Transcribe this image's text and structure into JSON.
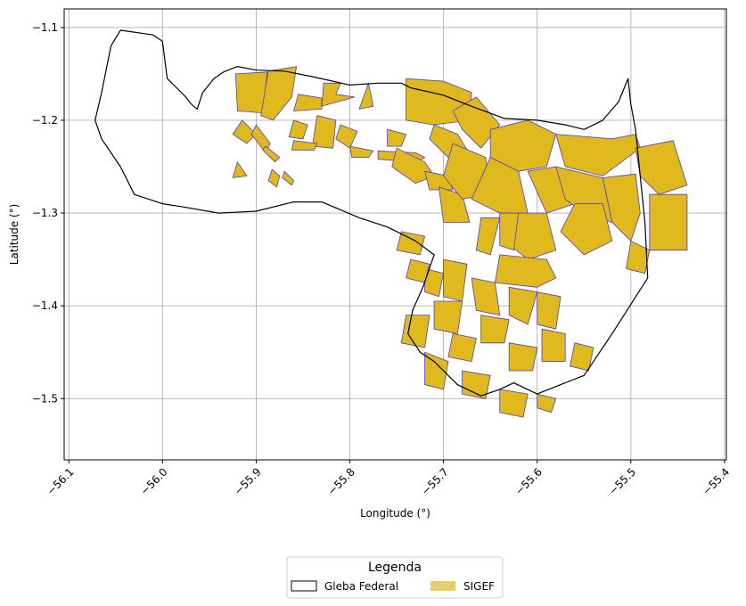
{
  "chart_data": {
    "type": "map",
    "xlabel": "Longitude (°)",
    "ylabel": "Latitude (°)",
    "xlim": [
      -56.105,
      -55.398
    ],
    "ylim": [
      -1.566,
      -1.08
    ],
    "x_ticks": [
      -56.1,
      -56.0,
      -55.9,
      -55.8,
      -55.7,
      -55.6,
      -55.5,
      -55.4
    ],
    "x_tick_labels": [
      "−56.1",
      "−56.0",
      "−55.9",
      "−55.8",
      "−55.7",
      "−55.6",
      "−55.5",
      "−55.4"
    ],
    "y_ticks": [
      -1.1,
      -1.2,
      -1.3,
      -1.4,
      -1.5
    ],
    "y_tick_labels": [
      "−1.1",
      "−1.2",
      "−1.3",
      "−1.4",
      "−1.5"
    ],
    "grid": true,
    "legend": {
      "title": "Legenda",
      "placement": "bottom-center, below axes",
      "entries": [
        {
          "label": "Gleba Federal",
          "style": "outline",
          "color": "#000000"
        },
        {
          "label": "SIGEF",
          "style": "fill",
          "color": "#e6cf6a"
        }
      ]
    },
    "colors": {
      "sigef_fill": "#e0b91e",
      "sigef_edge": "#4f3fb5",
      "gleba_edge": "#000000",
      "grid": "#b0b0b0"
    },
    "gleba_federal": [
      [
        -56.045,
        -1.103
      ],
      [
        -56.01,
        -1.108
      ],
      [
        -56.0,
        -1.115
      ],
      [
        -55.995,
        -1.155
      ],
      [
        -55.985,
        -1.165
      ],
      [
        -55.975,
        -1.175
      ],
      [
        -55.97,
        -1.182
      ],
      [
        -55.963,
        -1.188
      ],
      [
        -55.957,
        -1.17
      ],
      [
        -55.945,
        -1.155
      ],
      [
        -55.935,
        -1.148
      ],
      [
        -55.92,
        -1.142
      ],
      [
        -55.9,
        -1.146
      ],
      [
        -55.87,
        -1.147
      ],
      [
        -55.84,
        -1.153
      ],
      [
        -55.8,
        -1.162
      ],
      [
        -55.77,
        -1.16
      ],
      [
        -55.745,
        -1.16
      ],
      [
        -55.735,
        -1.165
      ],
      [
        -55.7,
        -1.173
      ],
      [
        -55.67,
        -1.185
      ],
      [
        -55.635,
        -1.198
      ],
      [
        -55.6,
        -1.2
      ],
      [
        -55.57,
        -1.205
      ],
      [
        -55.55,
        -1.21
      ],
      [
        -55.53,
        -1.2
      ],
      [
        -55.513,
        -1.18
      ],
      [
        -55.503,
        -1.155
      ],
      [
        -55.5,
        -1.183
      ],
      [
        -55.495,
        -1.21
      ],
      [
        -55.49,
        -1.26
      ],
      [
        -55.485,
        -1.31
      ],
      [
        -55.482,
        -1.37
      ],
      [
        -55.52,
        -1.43
      ],
      [
        -55.55,
        -1.475
      ],
      [
        -55.57,
        -1.483
      ],
      [
        -55.6,
        -1.495
      ],
      [
        -55.625,
        -1.483
      ],
      [
        -55.64,
        -1.49
      ],
      [
        -55.66,
        -1.497
      ],
      [
        -55.685,
        -1.485
      ],
      [
        -55.71,
        -1.46
      ],
      [
        -55.725,
        -1.45
      ],
      [
        -55.738,
        -1.43
      ],
      [
        -55.733,
        -1.405
      ],
      [
        -55.722,
        -1.38
      ],
      [
        -55.71,
        -1.345
      ],
      [
        -55.73,
        -1.33
      ],
      [
        -55.76,
        -1.315
      ],
      [
        -55.79,
        -1.305
      ],
      [
        -55.83,
        -1.288
      ],
      [
        -55.86,
        -1.288
      ],
      [
        -55.9,
        -1.298
      ],
      [
        -55.94,
        -1.3
      ],
      [
        -55.98,
        -1.293
      ],
      [
        -56.0,
        -1.29
      ],
      [
        -56.03,
        -1.28
      ],
      [
        -56.045,
        -1.25
      ],
      [
        -56.065,
        -1.22
      ],
      [
        -56.072,
        -1.2
      ],
      [
        -56.065,
        -1.17
      ],
      [
        -56.055,
        -1.12
      ]
    ],
    "sigef_parcels": [
      [
        [
          -55.922,
          -1.15
        ],
        [
          -55.888,
          -1.148
        ],
        [
          -55.893,
          -1.192
        ],
        [
          -55.92,
          -1.19
        ]
      ],
      [
        [
          -55.887,
          -1.147
        ],
        [
          -55.857,
          -1.142
        ],
        [
          -55.862,
          -1.175
        ],
        [
          -55.882,
          -1.2
        ],
        [
          -55.895,
          -1.195
        ]
      ],
      [
        [
          -55.855,
          -1.172
        ],
        [
          -55.83,
          -1.176
        ],
        [
          -55.83,
          -1.188
        ],
        [
          -55.86,
          -1.19
        ]
      ],
      [
        [
          -55.828,
          -1.16
        ],
        [
          -55.81,
          -1.16
        ],
        [
          -55.815,
          -1.172
        ],
        [
          -55.795,
          -1.175
        ],
        [
          -55.83,
          -1.185
        ]
      ],
      [
        [
          -55.78,
          -1.16
        ],
        [
          -55.775,
          -1.185
        ],
        [
          -55.79,
          -1.188
        ]
      ],
      [
        [
          -55.74,
          -1.155
        ],
        [
          -55.7,
          -1.158
        ],
        [
          -55.67,
          -1.17
        ],
        [
          -55.672,
          -1.2
        ],
        [
          -55.71,
          -1.205
        ],
        [
          -55.74,
          -1.2
        ]
      ],
      [
        [
          -55.69,
          -1.19
        ],
        [
          -55.665,
          -1.175
        ],
        [
          -55.64,
          -1.205
        ],
        [
          -55.66,
          -1.23
        ],
        [
          -55.68,
          -1.21
        ]
      ],
      [
        [
          -55.71,
          -1.205
        ],
        [
          -55.685,
          -1.215
        ],
        [
          -55.67,
          -1.24
        ],
        [
          -55.69,
          -1.245
        ],
        [
          -55.715,
          -1.22
        ]
      ],
      [
        [
          -55.76,
          -1.21
        ],
        [
          -55.74,
          -1.215
        ],
        [
          -55.745,
          -1.228
        ],
        [
          -55.76,
          -1.228
        ]
      ],
      [
        [
          -55.77,
          -1.233
        ],
        [
          -55.73,
          -1.235
        ],
        [
          -55.72,
          -1.24
        ],
        [
          -55.728,
          -1.245
        ],
        [
          -55.77,
          -1.242
        ]
      ],
      [
        [
          -55.8,
          -1.228
        ],
        [
          -55.775,
          -1.233
        ],
        [
          -55.78,
          -1.24
        ],
        [
          -55.798,
          -1.24
        ]
      ],
      [
        [
          -55.81,
          -1.205
        ],
        [
          -55.792,
          -1.212
        ],
        [
          -55.8,
          -1.23
        ],
        [
          -55.815,
          -1.22
        ]
      ],
      [
        [
          -55.835,
          -1.195
        ],
        [
          -55.815,
          -1.2
        ],
        [
          -55.818,
          -1.23
        ],
        [
          -55.84,
          -1.228
        ]
      ],
      [
        [
          -55.86,
          -1.2
        ],
        [
          -55.845,
          -1.205
        ],
        [
          -55.85,
          -1.22
        ],
        [
          -55.865,
          -1.218
        ]
      ],
      [
        [
          -55.86,
          -1.222
        ],
        [
          -55.835,
          -1.225
        ],
        [
          -55.838,
          -1.232
        ],
        [
          -55.862,
          -1.232
        ]
      ],
      [
        [
          -55.915,
          -1.2
        ],
        [
          -55.9,
          -1.215
        ],
        [
          -55.91,
          -1.225
        ],
        [
          -55.925,
          -1.215
        ]
      ],
      [
        [
          -55.9,
          -1.205
        ],
        [
          -55.885,
          -1.225
        ],
        [
          -55.89,
          -1.235
        ],
        [
          -55.905,
          -1.215
        ]
      ],
      [
        [
          -55.92,
          -1.245
        ],
        [
          -55.91,
          -1.26
        ],
        [
          -55.925,
          -1.262
        ]
      ],
      [
        [
          -55.89,
          -1.228
        ],
        [
          -55.875,
          -1.24
        ],
        [
          -55.88,
          -1.245
        ],
        [
          -55.893,
          -1.232
        ]
      ],
      [
        [
          -55.883,
          -1.253
        ],
        [
          -55.875,
          -1.26
        ],
        [
          -55.878,
          -1.272
        ],
        [
          -55.887,
          -1.265
        ]
      ],
      [
        [
          -55.87,
          -1.255
        ],
        [
          -55.86,
          -1.265
        ],
        [
          -55.862,
          -1.27
        ],
        [
          -55.872,
          -1.262
        ]
      ],
      [
        [
          -55.75,
          -1.23
        ],
        [
          -55.72,
          -1.245
        ],
        [
          -55.71,
          -1.26
        ],
        [
          -55.73,
          -1.268
        ],
        [
          -55.755,
          -1.25
        ]
      ],
      [
        [
          -55.72,
          -1.255
        ],
        [
          -55.695,
          -1.26
        ],
        [
          -55.69,
          -1.275
        ],
        [
          -55.715,
          -1.275
        ]
      ],
      [
        [
          -55.705,
          -1.272
        ],
        [
          -55.68,
          -1.28
        ],
        [
          -55.672,
          -1.31
        ],
        [
          -55.7,
          -1.31
        ]
      ],
      [
        [
          -55.69,
          -1.225
        ],
        [
          -55.655,
          -1.24
        ],
        [
          -55.65,
          -1.28
        ],
        [
          -55.68,
          -1.285
        ],
        [
          -55.7,
          -1.26
        ]
      ],
      [
        [
          -55.65,
          -1.21
        ],
        [
          -55.61,
          -1.2
        ],
        [
          -55.58,
          -1.215
        ],
        [
          -55.59,
          -1.25
        ],
        [
          -55.62,
          -1.255
        ],
        [
          -55.65,
          -1.24
        ]
      ],
      [
        [
          -55.58,
          -1.215
        ],
        [
          -55.52,
          -1.22
        ],
        [
          -55.495,
          -1.215
        ],
        [
          -55.49,
          -1.23
        ],
        [
          -55.53,
          -1.26
        ],
        [
          -55.57,
          -1.25
        ]
      ],
      [
        [
          -55.65,
          -1.24
        ],
        [
          -55.62,
          -1.255
        ],
        [
          -55.61,
          -1.3
        ],
        [
          -55.64,
          -1.3
        ],
        [
          -55.67,
          -1.285
        ]
      ],
      [
        [
          -55.61,
          -1.255
        ],
        [
          -55.58,
          -1.25
        ],
        [
          -55.56,
          -1.29
        ],
        [
          -55.59,
          -1.3
        ]
      ],
      [
        [
          -55.58,
          -1.25
        ],
        [
          -55.53,
          -1.262
        ],
        [
          -55.52,
          -1.31
        ],
        [
          -55.55,
          -1.3
        ],
        [
          -55.57,
          -1.285
        ]
      ],
      [
        [
          -55.53,
          -1.262
        ],
        [
          -55.495,
          -1.258
        ],
        [
          -55.49,
          -1.3
        ],
        [
          -55.5,
          -1.33
        ],
        [
          -55.52,
          -1.31
        ]
      ],
      [
        [
          -55.495,
          -1.23
        ],
        [
          -55.455,
          -1.222
        ],
        [
          -55.44,
          -1.27
        ],
        [
          -55.47,
          -1.28
        ],
        [
          -55.49,
          -1.26
        ]
      ],
      [
        [
          -55.48,
          -1.28
        ],
        [
          -55.44,
          -1.28
        ],
        [
          -55.44,
          -1.34
        ],
        [
          -55.48,
          -1.34
        ]
      ],
      [
        [
          -55.5,
          -1.33
        ],
        [
          -55.48,
          -1.34
        ],
        [
          -55.485,
          -1.365
        ],
        [
          -55.505,
          -1.36
        ]
      ],
      [
        [
          -55.56,
          -1.29
        ],
        [
          -55.53,
          -1.29
        ],
        [
          -55.52,
          -1.33
        ],
        [
          -55.55,
          -1.345
        ],
        [
          -55.575,
          -1.32
        ]
      ],
      [
        [
          -55.62,
          -1.3
        ],
        [
          -55.59,
          -1.3
        ],
        [
          -55.58,
          -1.34
        ],
        [
          -55.61,
          -1.35
        ],
        [
          -55.635,
          -1.33
        ]
      ],
      [
        [
          -55.64,
          -1.3
        ],
        [
          -55.62,
          -1.3
        ],
        [
          -55.625,
          -1.34
        ],
        [
          -55.64,
          -1.335
        ]
      ],
      [
        [
          -55.66,
          -1.305
        ],
        [
          -55.64,
          -1.305
        ],
        [
          -55.65,
          -1.345
        ],
        [
          -55.665,
          -1.34
        ]
      ],
      [
        [
          -55.64,
          -1.345
        ],
        [
          -55.59,
          -1.35
        ],
        [
          -55.58,
          -1.37
        ],
        [
          -55.6,
          -1.38
        ],
        [
          -55.645,
          -1.375
        ]
      ],
      [
        [
          -55.63,
          -1.38
        ],
        [
          -55.6,
          -1.385
        ],
        [
          -55.61,
          -1.42
        ],
        [
          -55.63,
          -1.41
        ]
      ],
      [
        [
          -55.6,
          -1.385
        ],
        [
          -55.575,
          -1.39
        ],
        [
          -55.58,
          -1.425
        ],
        [
          -55.6,
          -1.42
        ]
      ],
      [
        [
          -55.67,
          -1.37
        ],
        [
          -55.645,
          -1.375
        ],
        [
          -55.64,
          -1.41
        ],
        [
          -55.665,
          -1.405
        ]
      ],
      [
        [
          -55.7,
          -1.35
        ],
        [
          -55.675,
          -1.355
        ],
        [
          -55.68,
          -1.395
        ],
        [
          -55.7,
          -1.39
        ]
      ],
      [
        [
          -55.72,
          -1.36
        ],
        [
          -55.7,
          -1.365
        ],
        [
          -55.705,
          -1.39
        ],
        [
          -55.72,
          -1.385
        ]
      ],
      [
        [
          -55.71,
          -1.395
        ],
        [
          -55.68,
          -1.395
        ],
        [
          -55.685,
          -1.43
        ],
        [
          -55.71,
          -1.425
        ]
      ],
      [
        [
          -55.74,
          -1.41
        ],
        [
          -55.715,
          -1.41
        ],
        [
          -55.72,
          -1.445
        ],
        [
          -55.745,
          -1.44
        ]
      ],
      [
        [
          -55.69,
          -1.43
        ],
        [
          -55.665,
          -1.435
        ],
        [
          -55.67,
          -1.46
        ],
        [
          -55.695,
          -1.455
        ]
      ],
      [
        [
          -55.66,
          -1.41
        ],
        [
          -55.63,
          -1.415
        ],
        [
          -55.635,
          -1.44
        ],
        [
          -55.66,
          -1.44
        ]
      ],
      [
        [
          -55.63,
          -1.44
        ],
        [
          -55.6,
          -1.445
        ],
        [
          -55.605,
          -1.47
        ],
        [
          -55.63,
          -1.47
        ]
      ],
      [
        [
          -55.595,
          -1.425
        ],
        [
          -55.57,
          -1.43
        ],
        [
          -55.57,
          -1.46
        ],
        [
          -55.595,
          -1.46
        ]
      ],
      [
        [
          -55.56,
          -1.44
        ],
        [
          -55.54,
          -1.445
        ],
        [
          -55.545,
          -1.47
        ],
        [
          -55.565,
          -1.465
        ]
      ],
      [
        [
          -55.72,
          -1.45
        ],
        [
          -55.695,
          -1.46
        ],
        [
          -55.7,
          -1.49
        ],
        [
          -55.72,
          -1.485
        ]
      ],
      [
        [
          -55.68,
          -1.47
        ],
        [
          -55.65,
          -1.475
        ],
        [
          -55.655,
          -1.5
        ],
        [
          -55.68,
          -1.495
        ]
      ],
      [
        [
          -55.64,
          -1.49
        ],
        [
          -55.61,
          -1.495
        ],
        [
          -55.615,
          -1.52
        ],
        [
          -55.64,
          -1.515
        ]
      ],
      [
        [
          -55.6,
          -1.495
        ],
        [
          -55.58,
          -1.5
        ],
        [
          -55.585,
          -1.515
        ],
        [
          -55.6,
          -1.51
        ]
      ],
      [
        [
          -55.735,
          -1.35
        ],
        [
          -55.715,
          -1.355
        ],
        [
          -55.72,
          -1.375
        ],
        [
          -55.74,
          -1.37
        ]
      ],
      [
        [
          -55.745,
          -1.32
        ],
        [
          -55.72,
          -1.325
        ],
        [
          -55.725,
          -1.345
        ],
        [
          -55.75,
          -1.34
        ]
      ]
    ]
  }
}
